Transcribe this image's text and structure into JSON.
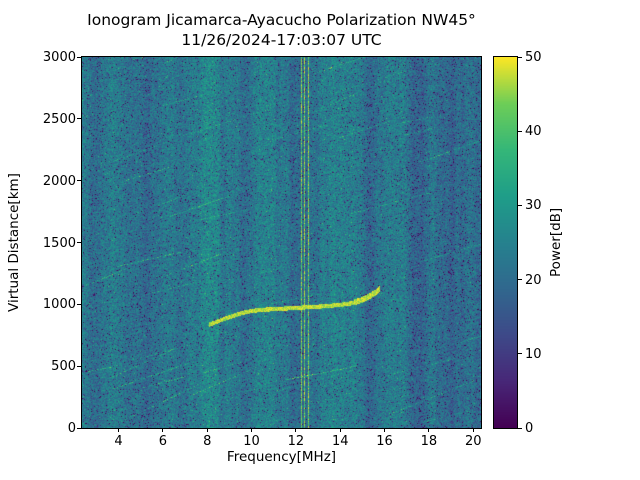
{
  "header": {
    "title_line1": "Ionogram Jicamarca-Ayacucho Polarization NW45°",
    "title_line2": "11/26/2024-17:03:07 UTC"
  },
  "axes": {
    "xlabel": "Frequency[MHz]",
    "ylabel": "Virtual Distance[km]",
    "x_ticks": [
      4,
      6,
      8,
      10,
      12,
      14,
      16,
      18,
      20
    ],
    "y_ticks": [
      0,
      500,
      1000,
      1500,
      2000,
      2500,
      3000
    ]
  },
  "colorbar": {
    "label": "Power[dB]",
    "ticks": [
      0,
      10,
      20,
      30,
      40,
      50
    ]
  },
  "chart_data": {
    "type": "heatmap",
    "title": "Ionogram Jicamarca-Ayacucho Polarization NW45°",
    "subtitle": "11/26/2024-17:03:07 UTC",
    "xlabel": "Frequency[MHz]",
    "ylabel": "Virtual Distance[km]",
    "colorbar_label": "Power[dB]",
    "colormap": "viridis",
    "x_range": [
      2.35,
      20.35
    ],
    "y_range": [
      0,
      3000
    ],
    "power_range_db": [
      0,
      50
    ],
    "background_power_db": {
      "mean": 22.5,
      "noise_amplitude": 13
    },
    "texture": {
      "vertical_banding": true,
      "dark_speckles": true,
      "diagonal_streaks": true
    },
    "interference_lines_mhz": [
      12.25,
      12.4,
      12.55
    ],
    "echo_trace": {
      "power_db": 47,
      "points": [
        [
          8.1,
          840
        ],
        [
          8.5,
          868
        ],
        [
          9.0,
          900
        ],
        [
          9.5,
          930
        ],
        [
          10.0,
          950
        ],
        [
          10.5,
          960
        ],
        [
          11.0,
          965
        ],
        [
          11.5,
          970
        ],
        [
          12.0,
          975
        ],
        [
          12.5,
          980
        ],
        [
          13.0,
          985
        ],
        [
          13.5,
          992
        ],
        [
          14.0,
          1000
        ],
        [
          14.5,
          1012
        ],
        [
          15.0,
          1040
        ],
        [
          15.3,
          1068
        ],
        [
          15.6,
          1100
        ],
        [
          15.8,
          1135
        ]
      ]
    }
  }
}
